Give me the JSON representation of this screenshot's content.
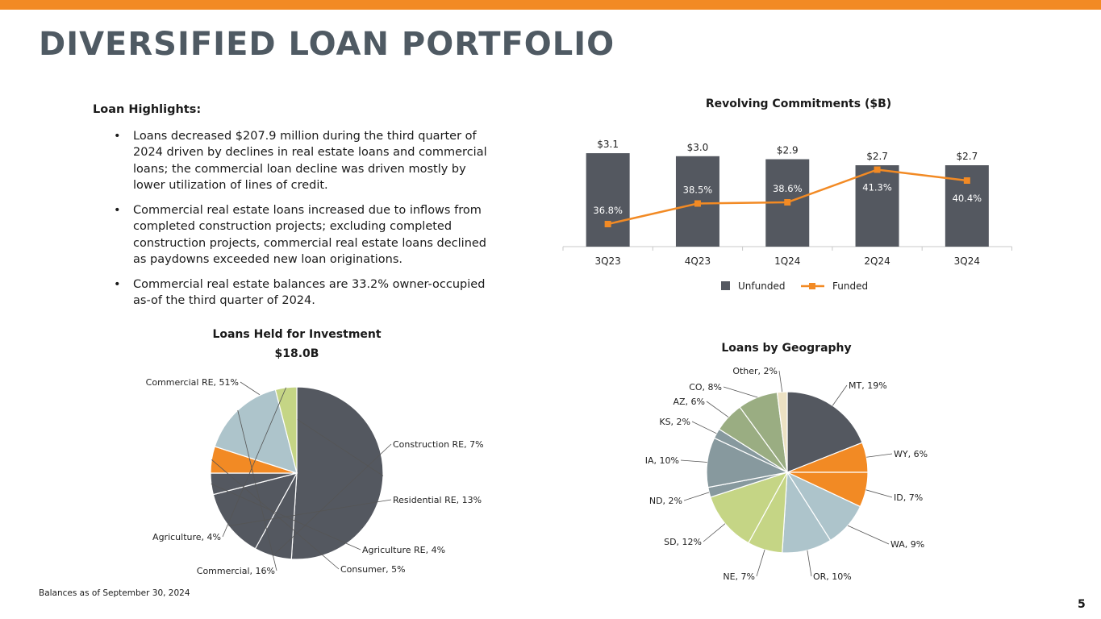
{
  "page": {
    "title": "DIVERSIFIED LOAN PORTFOLIO",
    "footnote": "Balances as of September 30, 2024",
    "page_number": "5",
    "accent_color": "#f28a24"
  },
  "highlights": {
    "title": "Loan Highlights:",
    "bullets": [
      "Loans decreased $207.9 million during the third quarter of 2024 driven by declines in real estate loans and commercial loans; the commercial loan decline was driven mostly by lower utilization of lines of credit.",
      "Commercial real estate loans increased due to inflows from completed construction projects; excluding completed construction projects, commercial real estate loans declined as paydowns exceeded new loan originations.",
      "Commercial real estate balances are 33.2% owner-occupied as-of the third quarter of 2024."
    ]
  },
  "chart_data": [
    {
      "type": "bar",
      "title": "Revolving Commitments ($B)",
      "categories": [
        "3Q23",
        "4Q23",
        "1Q24",
        "2Q24",
        "3Q24"
      ],
      "series": [
        {
          "name": "Unfunded",
          "kind": "bar",
          "color": "#545860",
          "values": [
            3.1,
            3.0,
            2.9,
            2.7,
            2.7
          ],
          "labels": [
            "$3.1",
            "$3.0",
            "$2.9",
            "$2.7",
            "$2.7"
          ]
        },
        {
          "name": "Funded",
          "kind": "line",
          "color": "#f28a24",
          "values": [
            36.8,
            38.5,
            38.6,
            41.3,
            40.4
          ],
          "labels": [
            "36.8%",
            "38.5%",
            "38.6%",
            "41.3%",
            "40.4%"
          ]
        }
      ],
      "legend": "bottom"
    },
    {
      "type": "pie",
      "title": "Loans Held for Investment",
      "subtitle": "$18.0B",
      "slices": [
        {
          "label": "Commercial RE, 51%",
          "value": 51,
          "color": "#545860"
        },
        {
          "label": "Construction RE, 7%",
          "value": 7,
          "color": "#545860"
        },
        {
          "label": "Residential RE, 13%",
          "value": 13,
          "color": "#545860"
        },
        {
          "label": "Agriculture RE, 4%",
          "value": 4,
          "color": "#545860"
        },
        {
          "label": "Consumer, 5%",
          "value": 5,
          "color": "#f28a24"
        },
        {
          "label": "Commercial, 16%",
          "value": 16,
          "color": "#adc4cb"
        },
        {
          "label": "Agriculture, 4%",
          "value": 4,
          "color": "#c5d585"
        }
      ]
    },
    {
      "type": "pie",
      "title": "Loans by Geography",
      "slices": [
        {
          "label": "MT, 19%",
          "value": 19,
          "color": "#545860"
        },
        {
          "label": "WY, 6%",
          "value": 6,
          "color": "#f28a24"
        },
        {
          "label": "ID, 7%",
          "value": 7,
          "color": "#f28a24"
        },
        {
          "label": "WA, 9%",
          "value": 9,
          "color": "#adc4cb"
        },
        {
          "label": "OR, 10%",
          "value": 10,
          "color": "#adc4cb"
        },
        {
          "label": "NE, 7%",
          "value": 7,
          "color": "#c5d585"
        },
        {
          "label": "SD, 12%",
          "value": 12,
          "color": "#c5d585"
        },
        {
          "label": "ND, 2%",
          "value": 2,
          "color": "#87999e"
        },
        {
          "label": "IA, 10%",
          "value": 10,
          "color": "#87999e"
        },
        {
          "label": "KS, 2%",
          "value": 2,
          "color": "#87999e"
        },
        {
          "label": "AZ, 6%",
          "value": 6,
          "color": "#9aad82"
        },
        {
          "label": "CO, 8%",
          "value": 8,
          "color": "#9aad82"
        },
        {
          "label": "Other, 2%",
          "value": 2,
          "color": "#ece1c3"
        }
      ]
    }
  ]
}
